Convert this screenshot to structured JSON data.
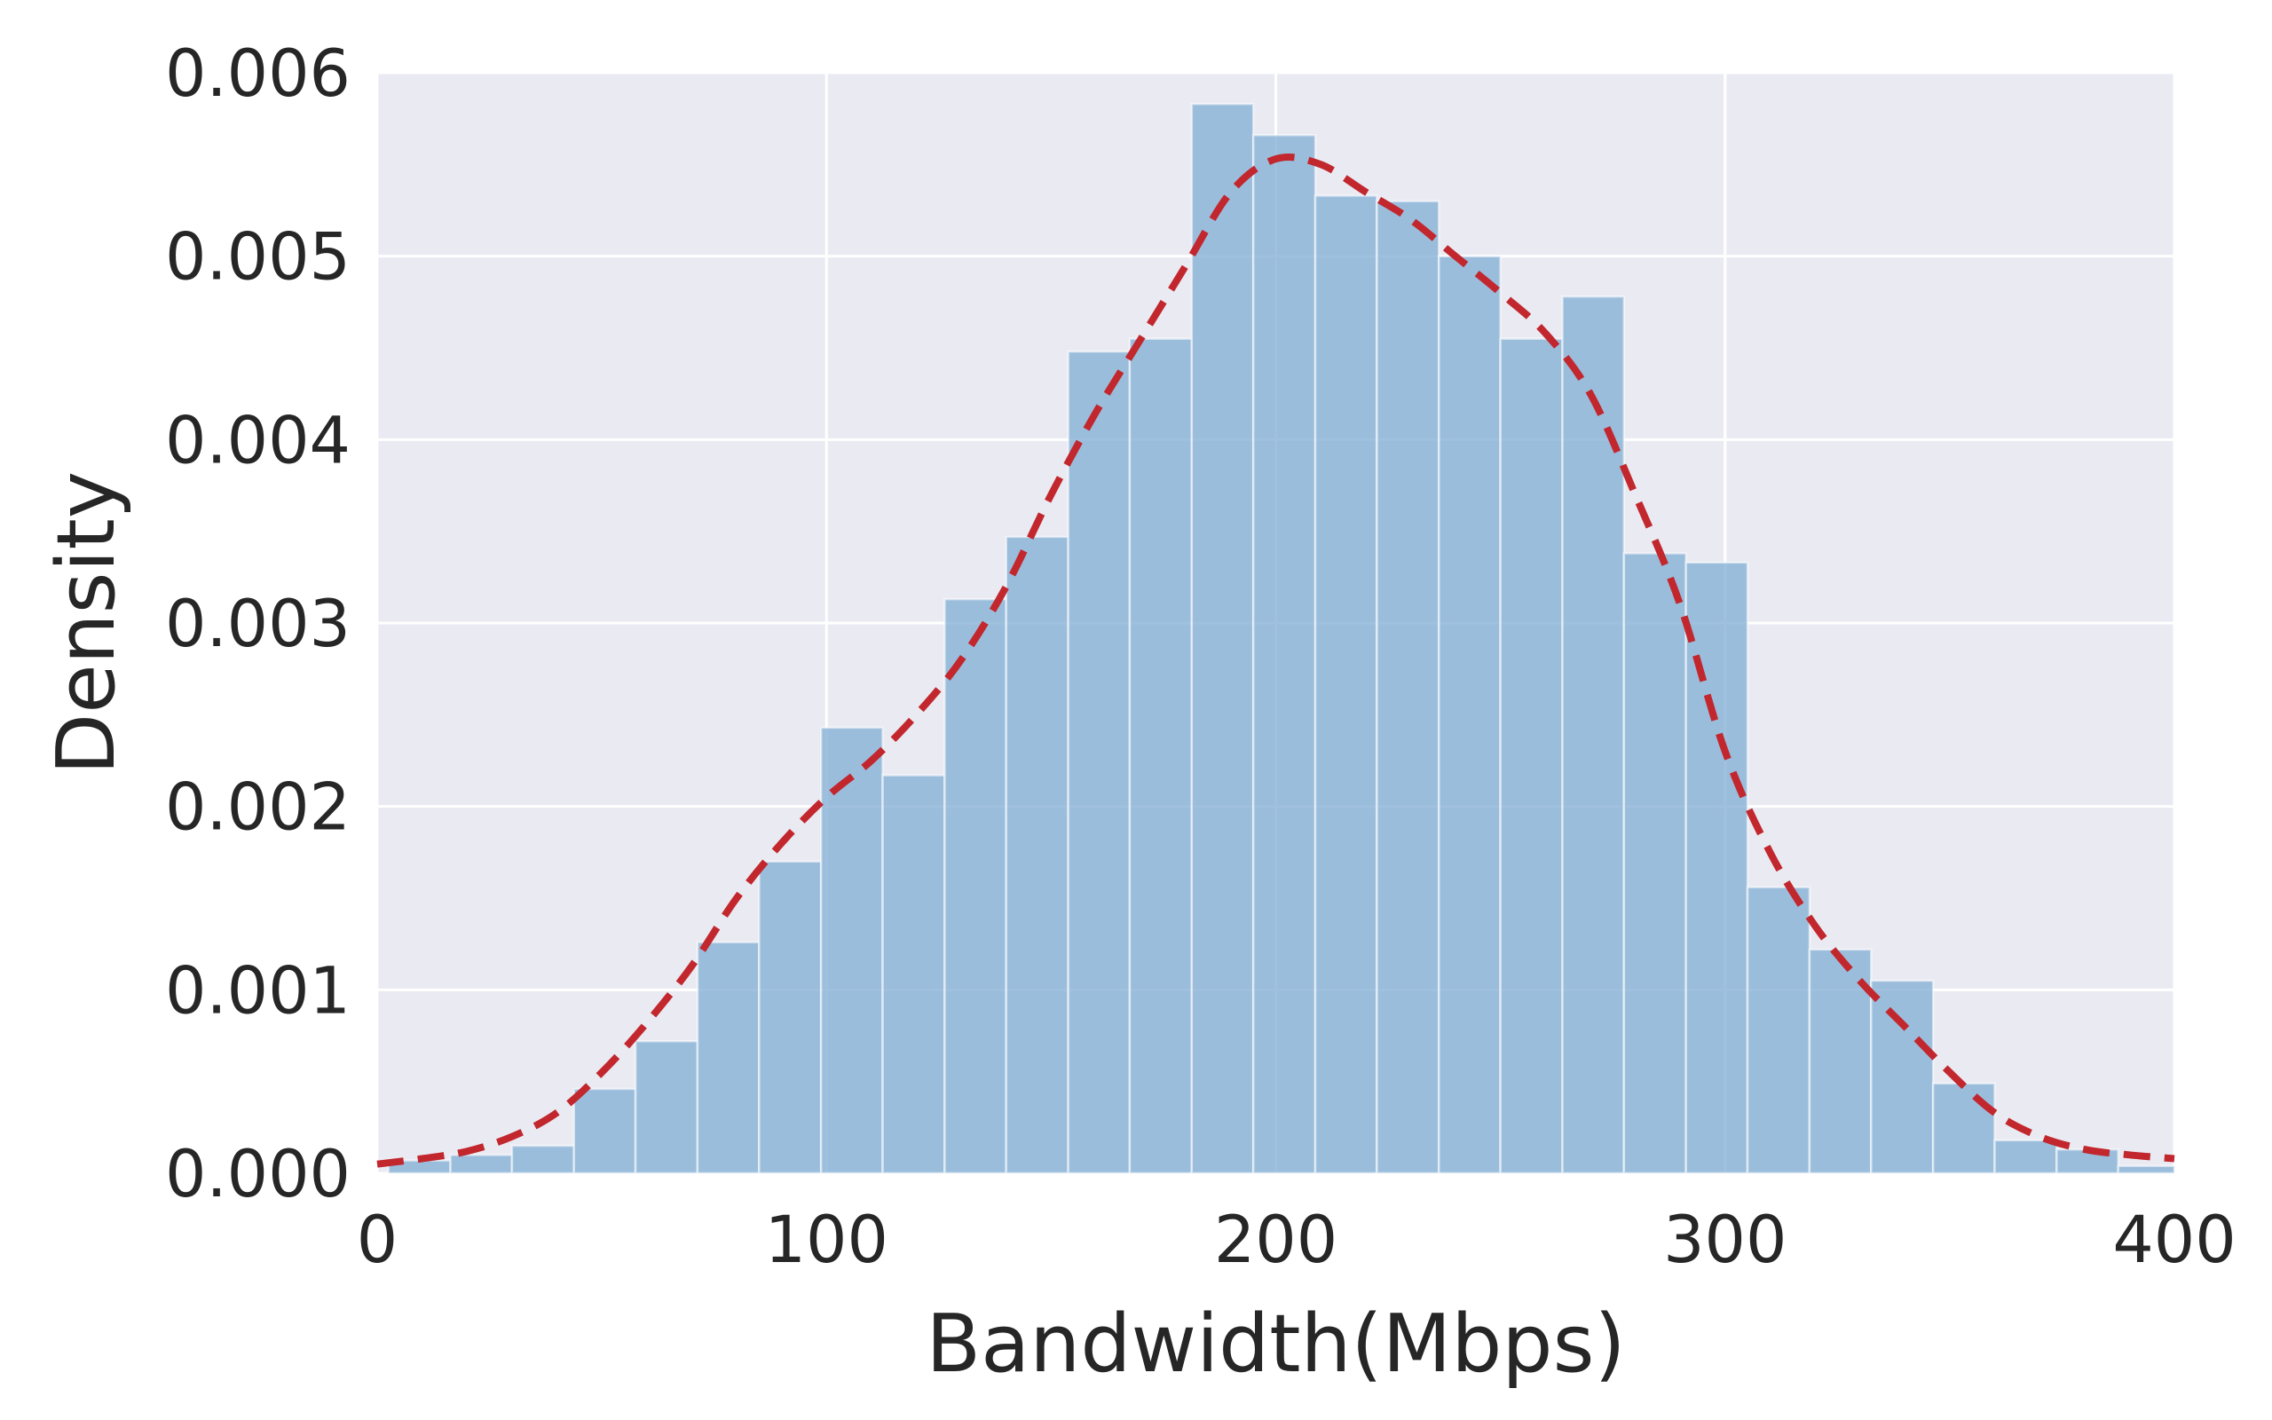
{
  "chart_data": {
    "type": "bar",
    "subtype": "histogram-with-density-curve",
    "xlabel": "Bandwidth(Mbps)",
    "ylabel": "Density",
    "xlim": [
      0,
      400
    ],
    "ylim": [
      0,
      0.006
    ],
    "xticks": [
      "0",
      "100",
      "200",
      "300",
      "400"
    ],
    "yticks": [
      "0.000",
      "0.001",
      "0.002",
      "0.003",
      "0.004",
      "0.005",
      "0.006"
    ],
    "xtick_values": [
      0,
      100,
      200,
      300,
      400
    ],
    "ytick_values": [
      0,
      0.001,
      0.002,
      0.003,
      0.004,
      0.005,
      0.006
    ],
    "grid": true,
    "background": "#EAEAF2",
    "bar_color": "#8AB3D7",
    "curve_color": "#C1272D",
    "curve_style": "dashed",
    "bin_edges": [
      2.5,
      16.3,
      30.0,
      43.8,
      57.5,
      71.3,
      85.0,
      98.8,
      112.5,
      126.3,
      140.0,
      153.8,
      167.5,
      181.3,
      195.0,
      208.8,
      222.5,
      236.3,
      250.0,
      263.8,
      277.5,
      291.3,
      305.0,
      318.8,
      332.5,
      346.3,
      360.0,
      373.8,
      387.5,
      401.3
    ],
    "bar_values": [
      7e-05,
      0.0001,
      0.00015,
      0.00046,
      0.00072,
      0.00126,
      0.0017,
      0.00243,
      0.00217,
      0.00313,
      0.00347,
      0.00448,
      0.00455,
      0.00583,
      0.00566,
      0.00533,
      0.0053,
      0.005,
      0.00455,
      0.00478,
      0.00338,
      0.00333,
      0.00156,
      0.00122,
      0.00105,
      0.00049,
      0.00018,
      0.00013,
      4e-05
    ],
    "curve": {
      "x": [
        0,
        10,
        20,
        30,
        40,
        50,
        60,
        70,
        80,
        90,
        100,
        110,
        120,
        130,
        140,
        150,
        160,
        170,
        180,
        190,
        200,
        210,
        220,
        230,
        240,
        250,
        260,
        270,
        280,
        290,
        300,
        310,
        320,
        330,
        340,
        350,
        360,
        370,
        380,
        390,
        400
      ],
      "y": [
        5e-05,
        8e-05,
        0.00012,
        0.0002,
        0.00033,
        0.00055,
        0.00082,
        0.00113,
        0.0015,
        0.0018,
        0.00205,
        0.00225,
        0.0025,
        0.0028,
        0.0032,
        0.0037,
        0.00415,
        0.00455,
        0.00495,
        0.00535,
        0.00553,
        0.0055,
        0.00535,
        0.0052,
        0.005,
        0.0048,
        0.00458,
        0.00425,
        0.0037,
        0.0031,
        0.0023,
        0.00175,
        0.00135,
        0.00105,
        0.0008,
        0.00055,
        0.00033,
        0.0002,
        0.00013,
        0.0001,
        8e-05
      ]
    }
  }
}
